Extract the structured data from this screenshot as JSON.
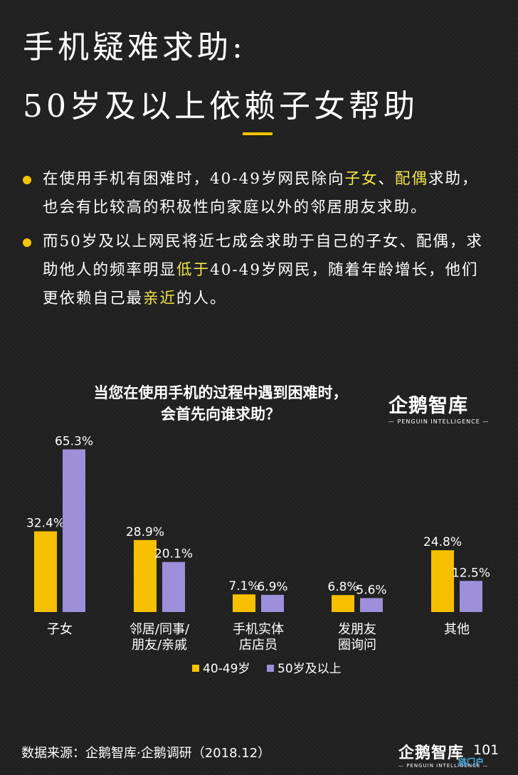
{
  "header": {
    "title_line1": "手机疑难求助:",
    "title_line2": "50岁及以上依赖子女帮助"
  },
  "bullets": [
    {
      "parts": [
        {
          "text": "在使用手机有困难时，40-49岁网民除向",
          "hl": false
        },
        {
          "text": "子女",
          "hl": true
        },
        {
          "text": "、",
          "hl": false
        },
        {
          "text": "配偶",
          "hl": true
        },
        {
          "text": "求助，也会有比较高的积极性向家庭以外的邻居朋友求助。",
          "hl": false
        }
      ]
    },
    {
      "parts": [
        {
          "text": "而50岁及以上网民将近七成会求助于自己的子女、配偶，求助他人的频率明显",
          "hl": false
        },
        {
          "text": "低于",
          "hl": true
        },
        {
          "text": "40-49岁网民，随着年龄增长，他们更依赖自己最",
          "hl": false
        },
        {
          "text": "亲近",
          "hl": true
        },
        {
          "text": "的人。",
          "hl": false
        }
      ]
    }
  ],
  "chart_title": {
    "line1": "当您在使用手机的过程中遇到困难时，",
    "line2": "会首先向谁求助？"
  },
  "logo": {
    "main": "企鹅智库",
    "sub": "— PENGUIN INTELLIGENCE —"
  },
  "chart_data": {
    "type": "bar",
    "categories": [
      [
        "子女"
      ],
      [
        "邻居/同事/",
        "朋友/亲戚"
      ],
      [
        "手机实体",
        "店店员"
      ],
      [
        "发朋友",
        "圈询问"
      ],
      [
        "其他"
      ]
    ],
    "series": [
      {
        "name": "40-49岁",
        "color": "#f6c000",
        "values": [
          32.4,
          28.9,
          7.1,
          6.8,
          24.8
        ],
        "labels": [
          "32.4%",
          "28.9%",
          "7.1%",
          "6.8%",
          "24.8%"
        ]
      },
      {
        "name": "50岁及以上",
        "color": "#9d8fd9",
        "values": [
          65.3,
          20.1,
          6.9,
          5.6,
          12.5
        ],
        "labels": [
          "65.3%",
          "20.1%",
          "6.9%",
          "5.6%",
          "12.5%"
        ]
      }
    ],
    "ylim": [
      0,
      70
    ],
    "grid": false,
    "legend_position": "bottom-center"
  },
  "footer": {
    "source": "数据来源：企鹅智库·企鹅调研（2018.12）",
    "page_number": "101",
    "watermark": "链门户"
  }
}
